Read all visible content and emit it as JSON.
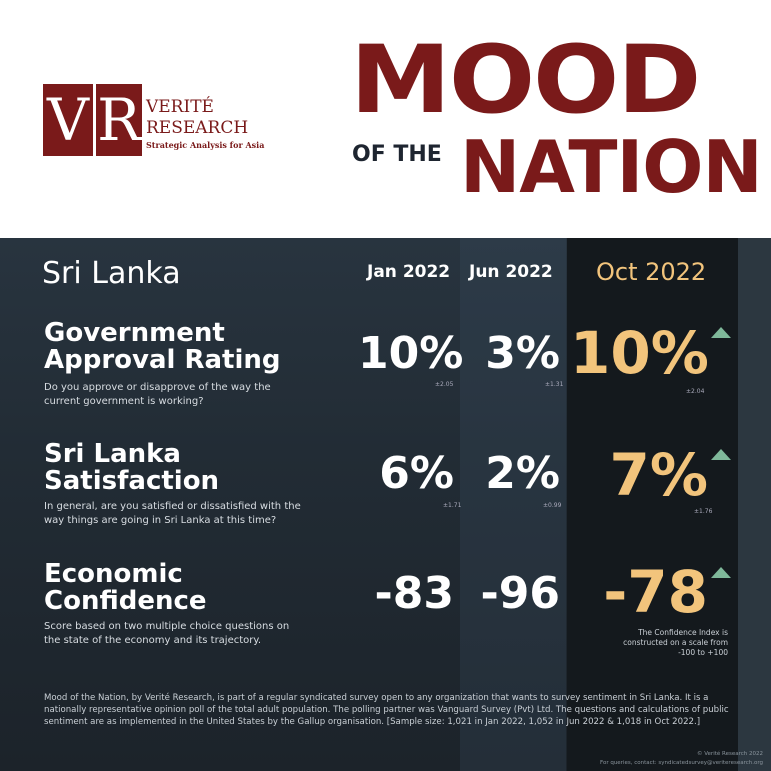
{
  "logo": {
    "v": "V",
    "r": "R",
    "name1": "VERITÉ",
    "name2": "RESEARCH",
    "tagline": "Strategic Analysis for Asia"
  },
  "title": {
    "line1": "MOOD",
    "of_the": "OF THE",
    "line2": "NATION"
  },
  "country": "Sri Lanka",
  "periods": [
    "Jan 2022",
    "Jun 2022",
    "Oct 2022"
  ],
  "rows": [
    {
      "title1": "Government",
      "title2": "Approval Rating",
      "question": "Do you approve or disapprove of the way the current government is working?",
      "values": [
        "10%",
        "3%",
        "10%"
      ],
      "moe": [
        "±2.05",
        "±1.31",
        "±2.04"
      ],
      "trend": "up"
    },
    {
      "title1": "Sri Lanka",
      "title2": "Satisfaction",
      "question": "In general, are you satisfied or dissatisfied with the way things are going in Sri Lanka at this time?",
      "values": [
        "6%",
        "2%",
        "7%"
      ],
      "moe": [
        "±1.71",
        "±0.99",
        "±1.76"
      ],
      "trend": "up"
    },
    {
      "title1": "Economic",
      "title2": "Confidence",
      "question": "Score based on two multiple choice questions on the state of the economy and its trajectory.",
      "values": [
        "-83",
        "-96",
        "-78"
      ],
      "note": "The Confidence Index is constructed on a scale from -100 to +100",
      "trend": "up"
    }
  ],
  "footer": "Mood of the Nation, by Verité Research, is part of a regular syndicated survey open to any organization that wants to survey sentiment in Sri Lanka. It is a nationally representative opinion poll of the total adult population. The polling partner was Vanguard Survey (Pvt) Ltd. The questions and calculations of public sentiment are as implemented in the United States by the Gallup organisation. [Sample size: 1,021 in Jan 2022, 1,052 in Jun 2022 & 1,018 in Oct 2022.]",
  "copyright": "© Verité Research 2022",
  "contact": "For queries, contact: syndicatedsurvey@veriteresearch.org",
  "colors": {
    "maroon": "#7a1a1a",
    "gold": "#f2c47c",
    "up": "#7fb89a"
  }
}
